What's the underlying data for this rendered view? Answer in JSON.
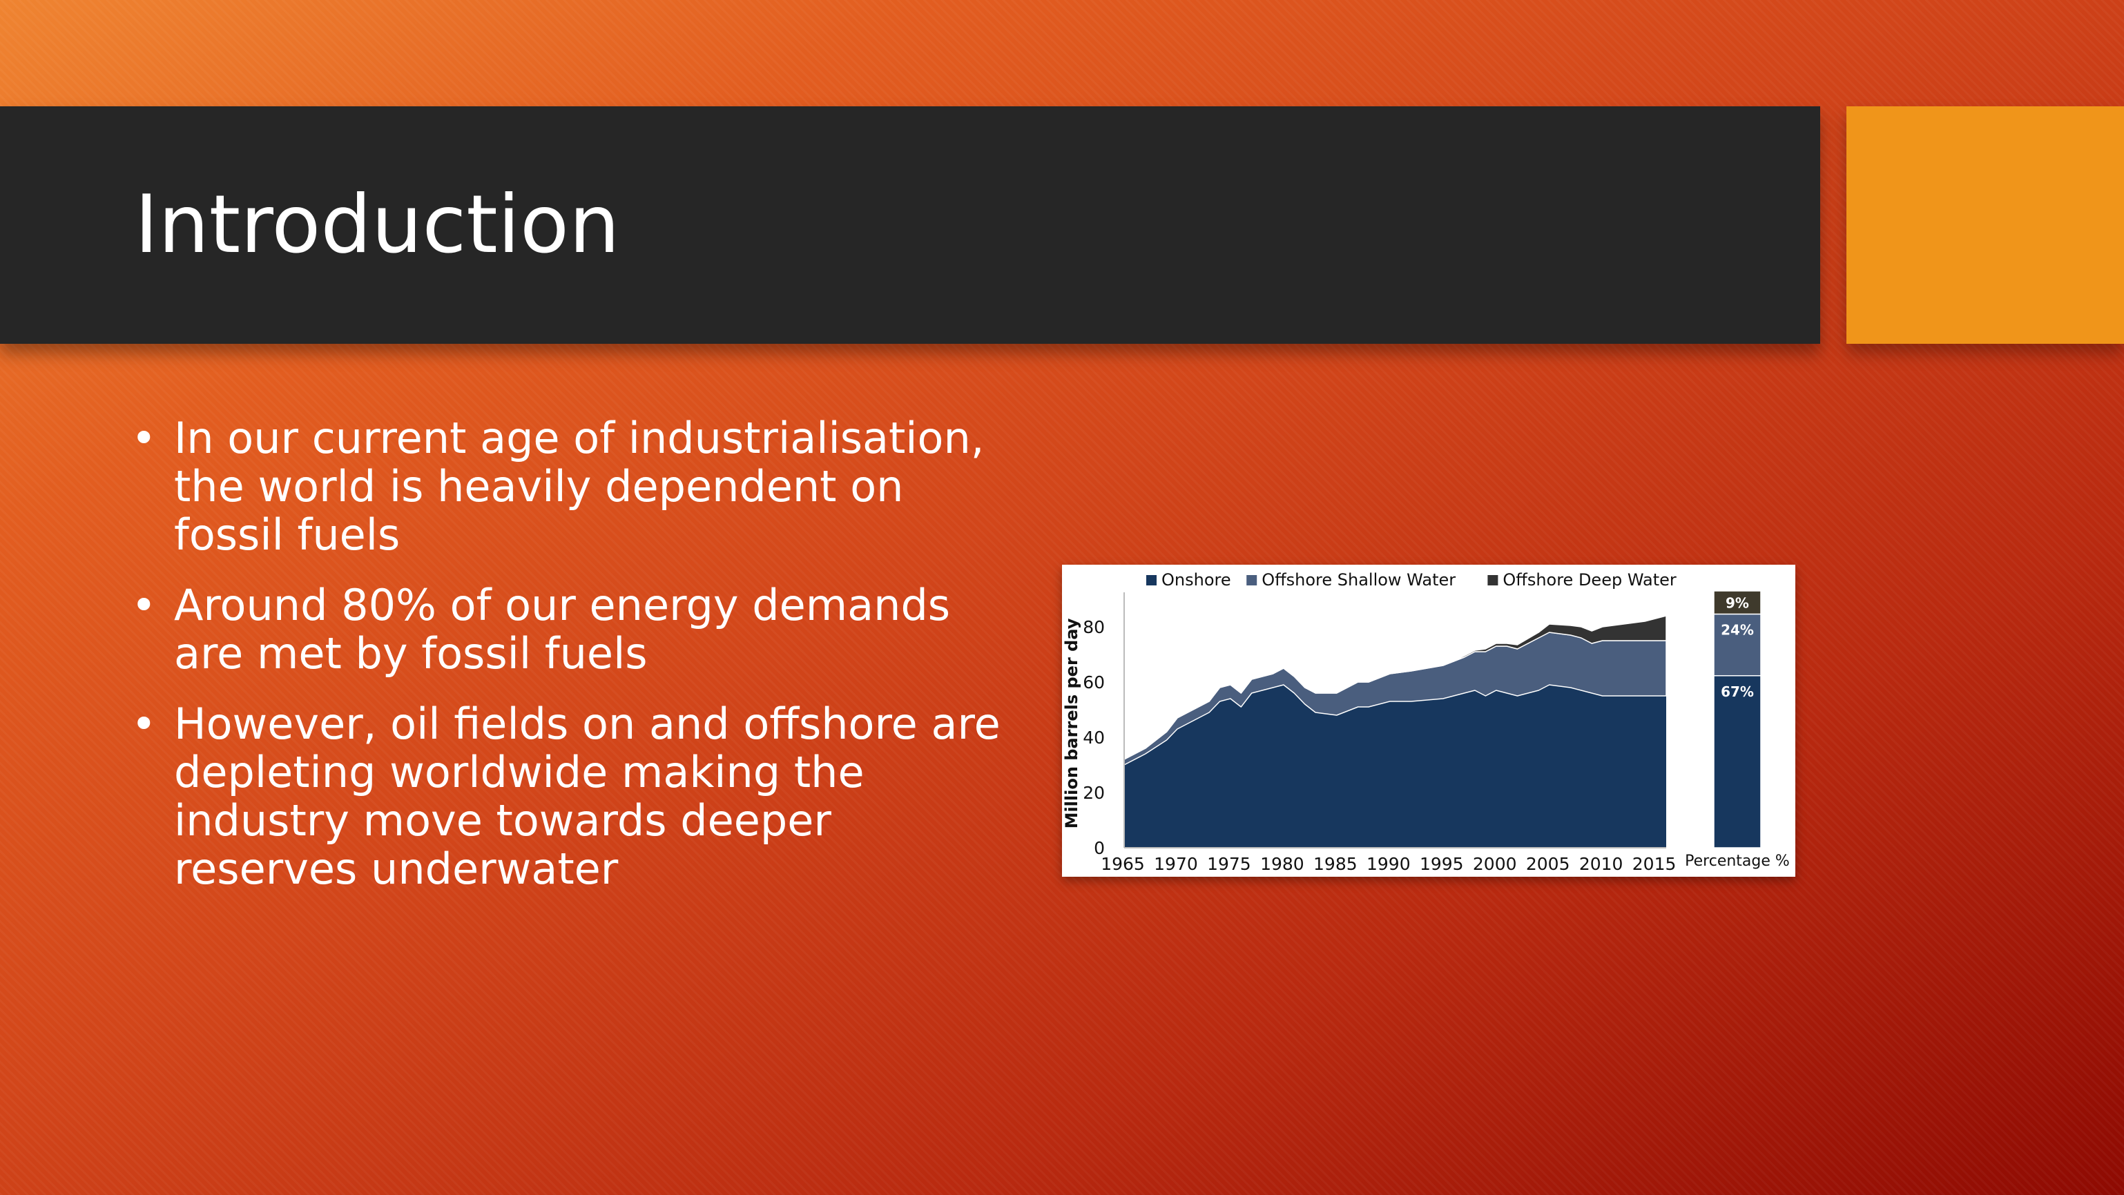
{
  "slide": {
    "title": "Introduction",
    "bullet_glyph": "•",
    "bullets": [
      "In our current age of industrialisation, the world is heavily dependent on fossil fuels",
      "Around 80% of our energy demands are met by fossil fuels",
      "However, oil fields on and offshore are depleting worldwide making the industry move towards deeper reserves underwater"
    ],
    "colors": {
      "title_bar": "#262626",
      "accent": "#f0951a",
      "background_start": "#ef8431",
      "background_end": "#8e0a02"
    }
  },
  "chart_data": {
    "type": "area",
    "stacked": true,
    "title": "",
    "xlabel": "",
    "ylabel": "Million barrels per day",
    "ylim": [
      0,
      90
    ],
    "yticks": [
      0,
      20,
      40,
      60,
      80
    ],
    "xticks": [
      1965,
      1970,
      1975,
      1980,
      1985,
      1990,
      1995,
      2000,
      2005,
      2010,
      2015
    ],
    "legend_position": "top",
    "x": [
      1965,
      1967,
      1969,
      1970,
      1971,
      1973,
      1974,
      1975,
      1976,
      1977,
      1979,
      1980,
      1981,
      1982,
      1983,
      1985,
      1987,
      1988,
      1990,
      1992,
      1995,
      1997,
      1998,
      1999,
      2000,
      2001,
      2002,
      2004,
      2005,
      2007,
      2008,
      2009,
      2010,
      2012,
      2014,
      2016
    ],
    "series": [
      {
        "name": "Onshore",
        "color": "#17375e",
        "values": [
          30,
          34,
          39,
          43,
          45,
          49,
          53,
          54,
          51,
          56,
          58,
          59,
          56,
          52,
          49,
          48,
          51,
          51,
          53,
          53,
          54,
          56,
          57,
          55,
          57,
          56,
          55,
          57,
          59,
          58,
          57,
          56,
          55,
          55,
          55,
          55
        ]
      },
      {
        "name": "Offshore Shallow Water",
        "color": "#4a5e7e",
        "values": [
          2,
          2,
          3,
          4,
          4,
          4,
          5,
          5,
          5,
          5,
          5,
          6,
          6,
          6,
          7,
          8,
          9,
          9,
          10,
          11,
          12,
          13,
          14,
          16,
          16,
          17,
          17,
          19,
          19,
          19,
          19,
          18,
          20,
          20,
          20,
          20
        ]
      },
      {
        "name": "Offshore Deep Water",
        "color": "#333333",
        "values": [
          0,
          0,
          0,
          0,
          0,
          0,
          0,
          0,
          0,
          0,
          0,
          0,
          0,
          0,
          0,
          0,
          0,
          0,
          0,
          0,
          0,
          0.5,
          0.5,
          1,
          1,
          1,
          1.5,
          2,
          3,
          3.5,
          4,
          4.5,
          5,
          6,
          7,
          9
        ]
      }
    ],
    "percentage_bar": {
      "label": "Percentage %",
      "segments": [
        {
          "name": "Onshore",
          "value": 67,
          "label": "67%",
          "color": "#17375e"
        },
        {
          "name": "Offshore Shallow Water",
          "value": 24,
          "label": "24%",
          "color": "#4a5e7e"
        },
        {
          "name": "Offshore Deep Water",
          "value": 9,
          "label": "9%",
          "color": "#3f3a2c"
        }
      ]
    }
  }
}
